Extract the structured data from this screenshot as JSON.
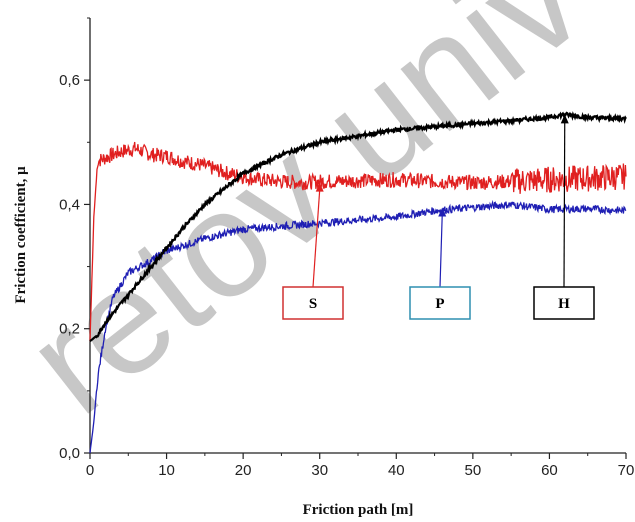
{
  "watermark": "retov univ",
  "chart_data": {
    "type": "line",
    "xlabel": "Friction path [m]",
    "ylabel": "Friction coefficient, μ",
    "xlim": [
      0,
      70
    ],
    "ylim": [
      0,
      0.7
    ],
    "x_ticks": [
      0,
      10,
      20,
      30,
      40,
      50,
      60,
      70
    ],
    "x_tick_labels": [
      "0",
      "10",
      "20",
      "30",
      "40",
      "50",
      "60",
      "70"
    ],
    "y_ticks": [
      0.0,
      0.2,
      0.4,
      0.6
    ],
    "y_tick_labels": [
      "0,0",
      "0,2",
      "0,4",
      "0,6"
    ],
    "grid": false,
    "series": [
      {
        "name": "S",
        "color": "#e02020",
        "x": [
          0,
          0.5,
          1,
          2,
          4,
          6,
          8,
          10,
          12,
          14,
          16,
          18,
          20,
          22,
          25,
          28,
          30,
          35,
          40,
          45,
          50,
          55,
          60,
          65,
          70
        ],
        "y": [
          0.18,
          0.38,
          0.47,
          0.475,
          0.485,
          0.49,
          0.48,
          0.478,
          0.47,
          0.465,
          0.458,
          0.45,
          0.445,
          0.44,
          0.437,
          0.435,
          0.437,
          0.438,
          0.44,
          0.437,
          0.435,
          0.437,
          0.44,
          0.442,
          0.445
        ]
      },
      {
        "name": "P",
        "color": "#1f1fb4",
        "x": [
          0,
          0.5,
          1,
          2,
          3,
          5,
          8,
          10,
          15,
          20,
          25,
          30,
          35,
          40,
          45,
          50,
          55,
          60,
          65,
          70
        ],
        "y": [
          0.0,
          0.05,
          0.12,
          0.2,
          0.25,
          0.29,
          0.31,
          0.325,
          0.345,
          0.36,
          0.365,
          0.37,
          0.375,
          0.38,
          0.39,
          0.395,
          0.4,
          0.392,
          0.393,
          0.39
        ]
      },
      {
        "name": "H",
        "color": "#000000",
        "x": [
          0,
          1,
          2,
          4,
          6,
          8,
          10,
          12,
          15,
          20,
          25,
          30,
          35,
          40,
          45,
          50,
          55,
          60,
          62,
          65,
          70
        ],
        "y": [
          0.18,
          0.19,
          0.21,
          0.24,
          0.27,
          0.3,
          0.33,
          0.36,
          0.4,
          0.45,
          0.48,
          0.5,
          0.51,
          0.52,
          0.525,
          0.53,
          0.535,
          0.54,
          0.545,
          0.54,
          0.538
        ]
      }
    ],
    "annotations": [
      {
        "label": "S",
        "color": "#e02020",
        "box_color": "#d03030",
        "arrow_to": [
          30,
          0.435
        ]
      },
      {
        "label": "P",
        "color": "#1f1fb4",
        "box_color": "#2e8fb0",
        "arrow_to": [
          46,
          0.395
        ]
      },
      {
        "label": "H",
        "color": "#000000",
        "box_color": "#000000",
        "arrow_to": [
          62,
          0.545
        ]
      }
    ]
  }
}
